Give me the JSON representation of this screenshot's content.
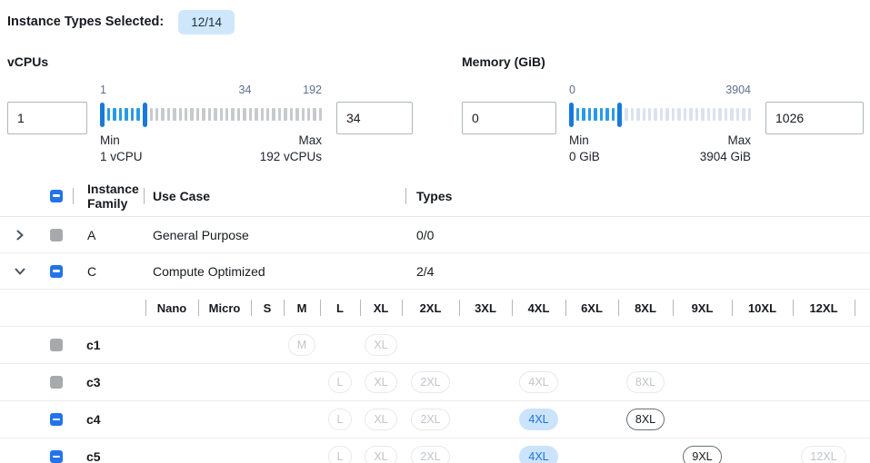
{
  "header": {
    "label": "Instance Types Selected:",
    "badge": "12/14"
  },
  "filters": {
    "vcpus": {
      "label": "vCPUs",
      "from": "1",
      "to": "34",
      "scale": [
        "1",
        "34",
        "192"
      ],
      "min_caption": "Min",
      "min_detail": "1 vCPU",
      "max_caption": "Max",
      "max_detail": "192 vCPUs",
      "ticks_active": 6,
      "ticks_inactive": 30
    },
    "memory": {
      "label": "Memory (GiB)",
      "from": "0",
      "to": "1026",
      "scale": [
        "0",
        "1026",
        "3904"
      ],
      "min_caption": "Min",
      "min_detail": "0 GiB",
      "max_caption": "Max",
      "max_detail": "3904 GiB",
      "ticks_active": 7,
      "ticks_inactive": 22
    }
  },
  "table": {
    "columns": {
      "family": "Instance Family",
      "use_case": "Use Case",
      "types": "Types"
    },
    "size_columns": [
      "Nano",
      "Micro",
      "S",
      "M",
      "L",
      "XL",
      "2XL",
      "3XL",
      "4XL",
      "6XL",
      "8XL",
      "9XL",
      "10XL",
      "12XL"
    ],
    "header_checkbox_state": "indeterminate",
    "rows": [
      {
        "type": "family",
        "expand": "right",
        "checkbox": "disabled",
        "family": "A",
        "use_case": "General Purpose",
        "types": "0/0"
      },
      {
        "type": "family",
        "expand": "down",
        "checkbox": "indeterminate",
        "family": "C",
        "use_case": "Compute Optimized",
        "types": "2/4"
      },
      {
        "type": "size_header"
      },
      {
        "type": "instance",
        "checkbox": "disabled",
        "label": "c1",
        "chips": {
          "M": "disabled",
          "XL": "disabled"
        }
      },
      {
        "type": "instance",
        "checkbox": "disabled",
        "label": "c3",
        "chips": {
          "L": "disabled",
          "XL": "disabled",
          "2XL": "disabled",
          "4XL": "disabled",
          "8XL": "disabled"
        }
      },
      {
        "type": "instance",
        "checkbox": "indeterminate",
        "label": "c4",
        "chips": {
          "L": "disabled",
          "XL": "disabled",
          "2XL": "disabled",
          "4XL": "selected",
          "8XL": "available"
        }
      },
      {
        "type": "instance",
        "checkbox": "indeterminate",
        "label": "c5",
        "chips": {
          "L": "disabled",
          "XL": "disabled",
          "2XL": "disabled",
          "4XL": "selected",
          "9XL": "available",
          "12XL": "disabled"
        }
      }
    ]
  },
  "colors": {
    "accent_blue": "#2374e8",
    "slider_handle_blue": "#1878dd",
    "slider_tick_blue": "#2b9ae6",
    "badge_bg": "#cfe7fb",
    "chip_selected_bg": "#cbe4fb",
    "chip_selected_text": "#1c72e0",
    "disabled_checkbox_gray": "#a7aaad",
    "row_border_gray": "#e9ebed"
  }
}
